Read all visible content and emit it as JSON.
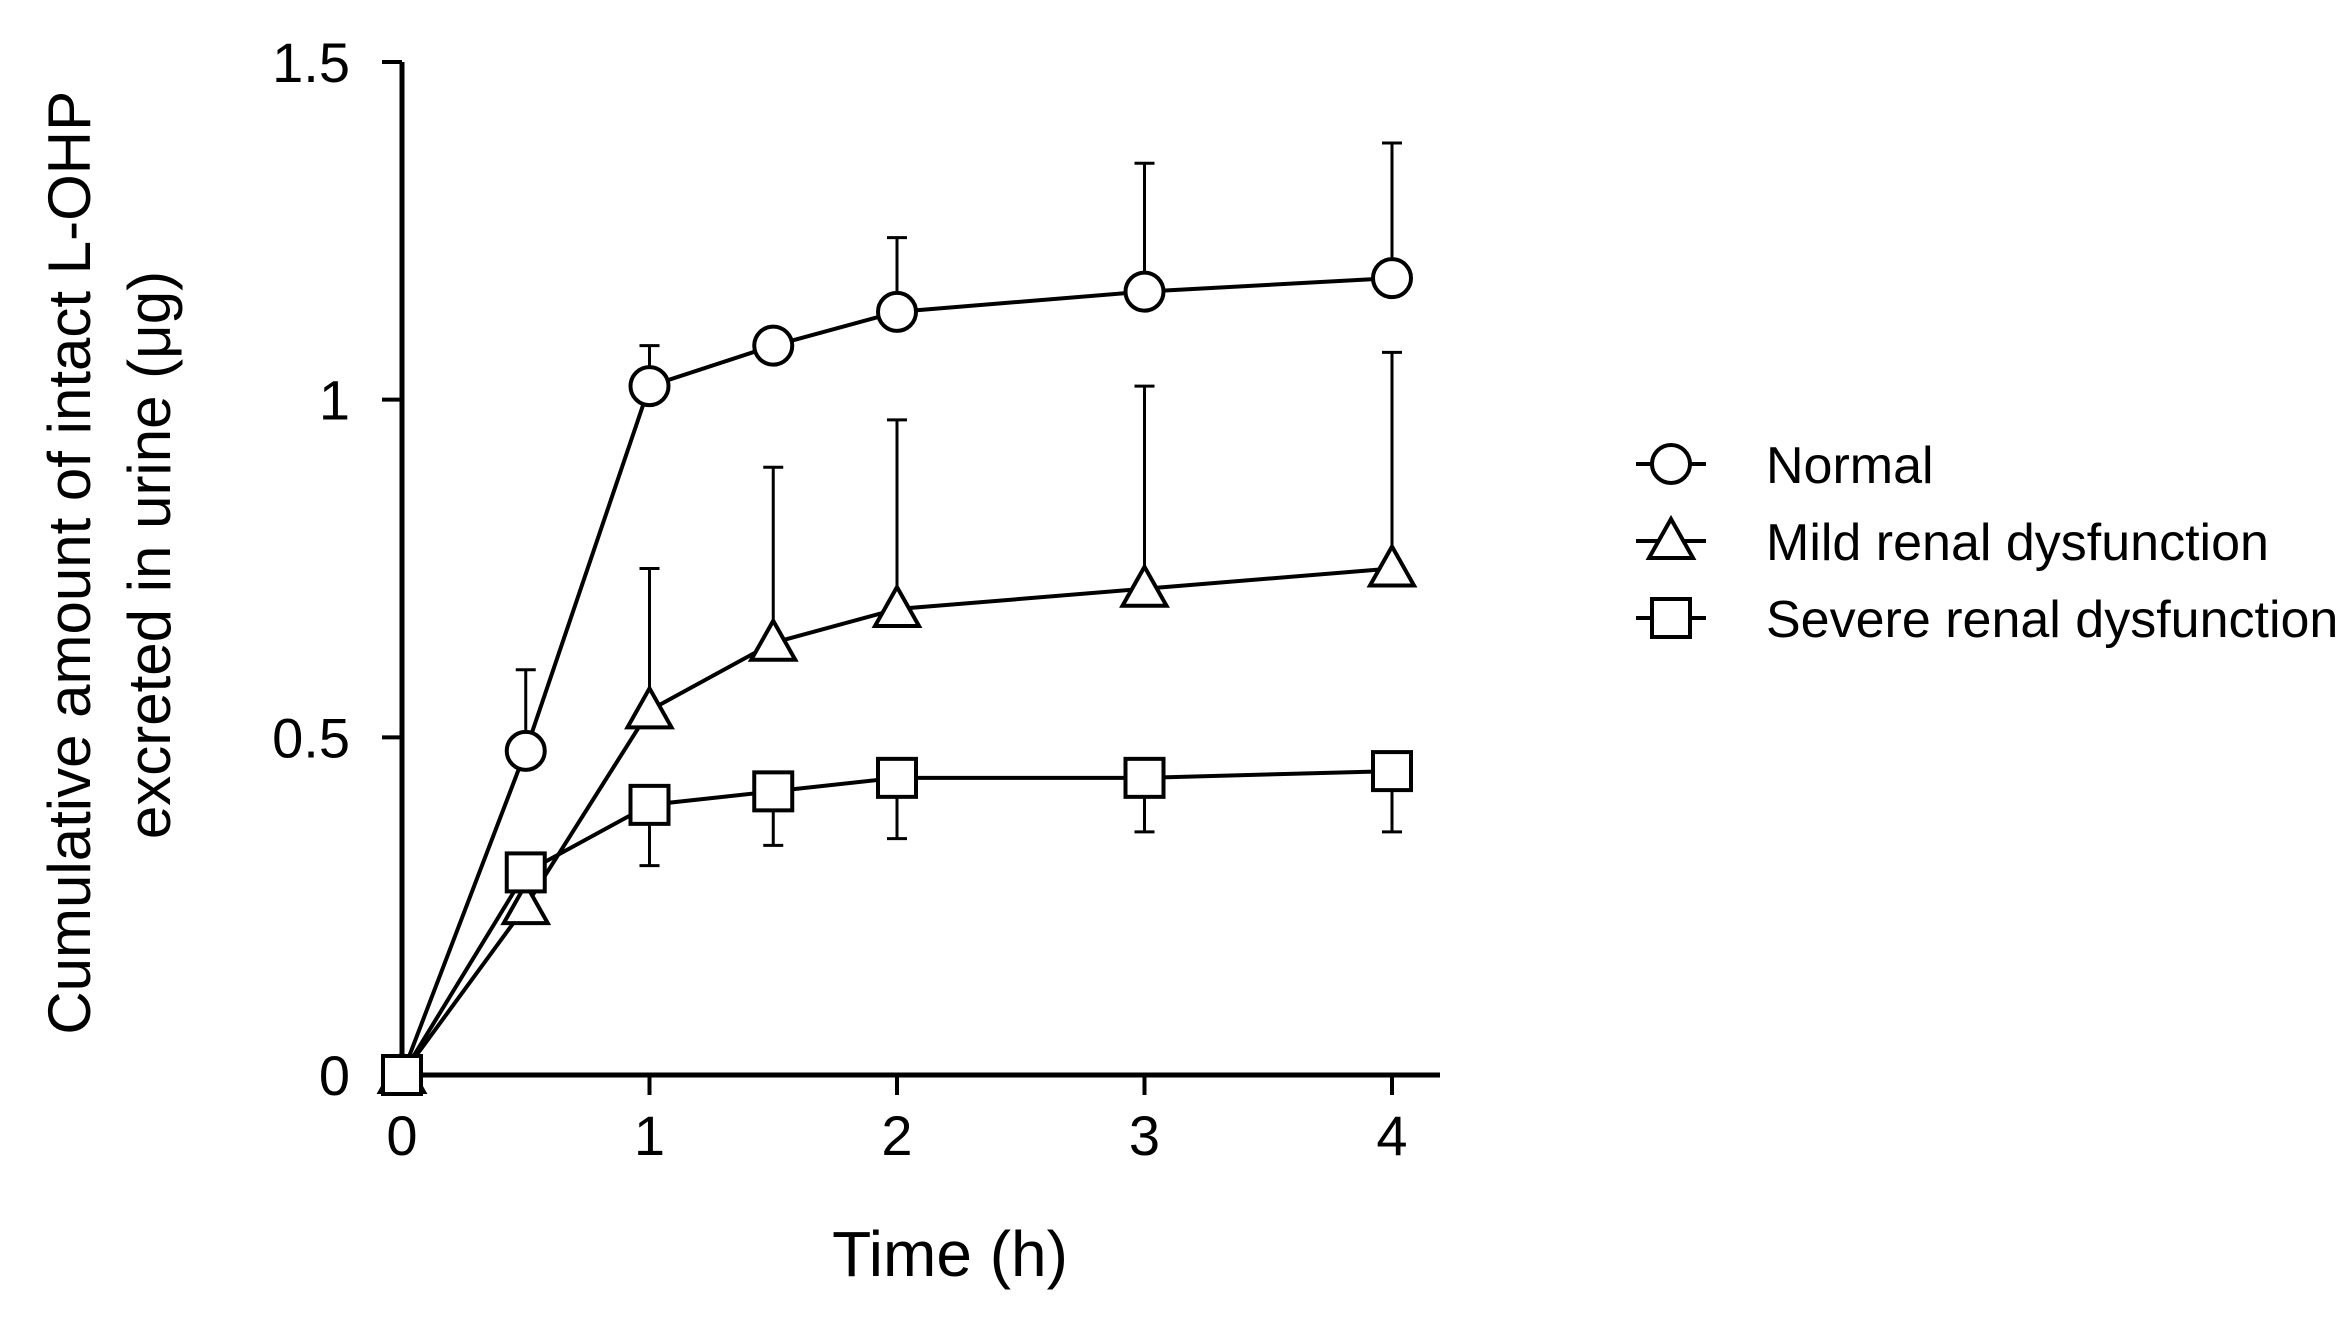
{
  "chart_data": {
    "type": "line",
    "title": "",
    "xlabel": "Time (h)",
    "ylabel_lines": [
      "Cumulative amount of intact L-OHP",
      "excreted in urine (μg)"
    ],
    "xlim": [
      0,
      4
    ],
    "ylim": [
      0,
      1.5
    ],
    "x_ticks": [
      0,
      1,
      2,
      3,
      4
    ],
    "x_tick_labels": [
      "0",
      "1",
      "2",
      "3",
      "4"
    ],
    "y_ticks": [
      0,
      0.5,
      1,
      1.5
    ],
    "y_tick_labels": [
      "0",
      "0.5",
      "1",
      "1.5"
    ],
    "grid": false,
    "legend_position": "right",
    "error_bars": "upper for Normal and Mild, lower for Severe",
    "series": [
      {
        "name": "Normal",
        "marker": "circle",
        "x": [
          0,
          0.5,
          1,
          1.5,
          2,
          3,
          4
        ],
        "y": [
          0,
          0.48,
          1.02,
          1.08,
          1.13,
          1.16,
          1.18
        ],
        "err": [
          0,
          0.12,
          0.06,
          0,
          0.11,
          0.19,
          0.2
        ],
        "err_dir": "up"
      },
      {
        "name": "Mild renal dysfunction",
        "marker": "triangle",
        "x": [
          0,
          0.5,
          1,
          1.5,
          2,
          3,
          4
        ],
        "y": [
          0,
          0.25,
          0.54,
          0.64,
          0.69,
          0.72,
          0.75
        ],
        "err": [
          0,
          0,
          0.21,
          0.26,
          0.28,
          0.3,
          0.32
        ],
        "err_dir": "up"
      },
      {
        "name": "Severe renal dysfunction",
        "marker": "square",
        "x": [
          0,
          0.5,
          1,
          1.5,
          2,
          3,
          4
        ],
        "y": [
          0,
          0.3,
          0.4,
          0.42,
          0.44,
          0.44,
          0.45
        ],
        "err": [
          0,
          0,
          0.09,
          0.08,
          0.09,
          0.08,
          0.09
        ],
        "err_dir": "down"
      }
    ]
  },
  "colors": {
    "line": "#000000",
    "marker_fill": "#ffffff",
    "background": "#ffffff"
  }
}
